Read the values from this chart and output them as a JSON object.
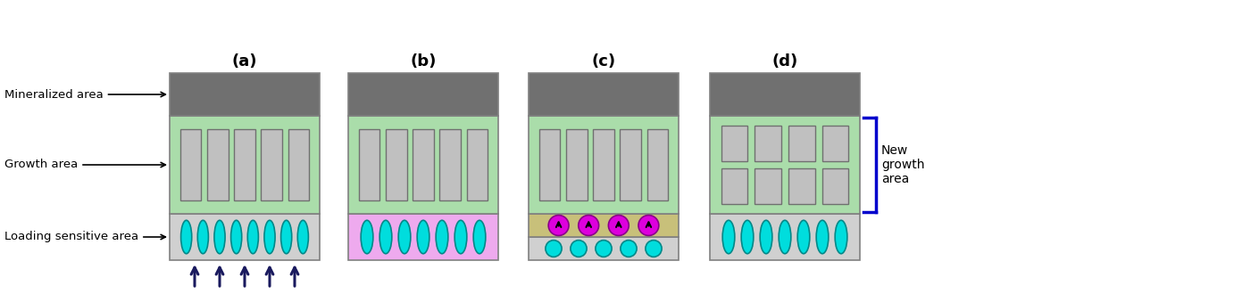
{
  "panels": [
    "(a)",
    "(b)",
    "(c)",
    "(d)"
  ],
  "colors": {
    "light_gray_top": "#d0d0d0",
    "green_bg": "#aaddaa",
    "dark_gray_mineral": "#707070",
    "cyan_fill": "#00dddd",
    "cyan_edge": "#008888",
    "magenta_fill": "#dd00dd",
    "magenta_edge": "#880088",
    "pink_bg": "#eeaaee",
    "olive_bg": "#c8c07a",
    "arrow_dark": "#1a1a5e",
    "bracket_blue": "#0000cc",
    "rect_fill": "#c0c0c0",
    "rect_edge": "#707070",
    "panel_edge": "#808080",
    "text_black": "#000000"
  },
  "annotations": {
    "loading_sensitive": "Loading sensitive area",
    "growth_area": "Growth area",
    "mineralized": "Mineralized area",
    "new_growth": "New\ngrowth\narea"
  }
}
